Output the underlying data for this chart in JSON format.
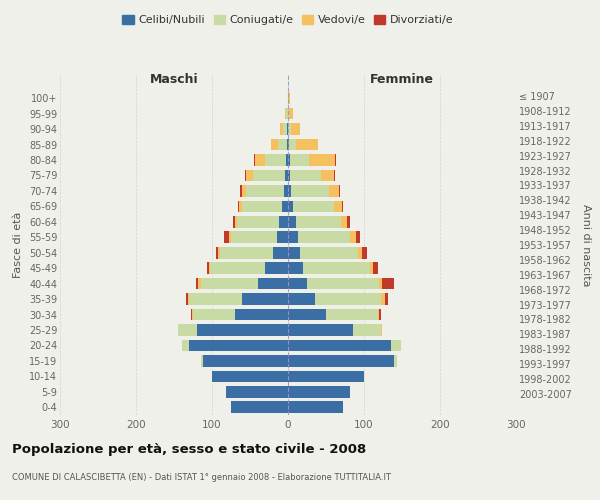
{
  "age_groups": [
    "0-4",
    "5-9",
    "10-14",
    "15-19",
    "20-24",
    "25-29",
    "30-34",
    "35-39",
    "40-44",
    "45-49",
    "50-54",
    "55-59",
    "60-64",
    "65-69",
    "70-74",
    "75-79",
    "80-84",
    "85-89",
    "90-94",
    "95-99",
    "100+"
  ],
  "birth_years": [
    "2003-2007",
    "1998-2002",
    "1993-1997",
    "1988-1992",
    "1983-1987",
    "1978-1982",
    "1973-1977",
    "1968-1972",
    "1963-1967",
    "1958-1962",
    "1953-1957",
    "1948-1952",
    "1943-1947",
    "1938-1942",
    "1933-1937",
    "1928-1932",
    "1923-1927",
    "1918-1922",
    "1913-1917",
    "1908-1912",
    "≤ 1907"
  ],
  "maschi": {
    "celibi": [
      75,
      82,
      100,
      112,
      130,
      120,
      70,
      60,
      40,
      30,
      20,
      15,
      12,
      8,
      5,
      4,
      2,
      1,
      1,
      0,
      0
    ],
    "coniugati": [
      0,
      0,
      0,
      2,
      10,
      25,
      55,
      70,
      75,
      72,
      70,
      60,
      55,
      52,
      50,
      42,
      28,
      12,
      5,
      2,
      0
    ],
    "vedovi": [
      0,
      0,
      0,
      0,
      0,
      0,
      1,
      2,
      3,
      2,
      2,
      3,
      3,
      4,
      6,
      9,
      14,
      10,
      4,
      2,
      0
    ],
    "divorziati": [
      0,
      0,
      0,
      0,
      0,
      0,
      1,
      2,
      3,
      3,
      3,
      6,
      2,
      2,
      2,
      1,
      1,
      0,
      0,
      0,
      0
    ]
  },
  "femmine": {
    "nubili": [
      72,
      82,
      100,
      140,
      135,
      85,
      50,
      35,
      25,
      20,
      16,
      13,
      10,
      7,
      4,
      3,
      2,
      1,
      0,
      0,
      0
    ],
    "coniugate": [
      0,
      0,
      0,
      3,
      14,
      38,
      68,
      88,
      95,
      88,
      76,
      68,
      60,
      54,
      50,
      40,
      25,
      10,
      4,
      1,
      0
    ],
    "vedove": [
      0,
      0,
      0,
      0,
      0,
      1,
      2,
      4,
      4,
      4,
      6,
      8,
      8,
      10,
      13,
      18,
      35,
      28,
      12,
      5,
      2
    ],
    "divorziate": [
      0,
      0,
      0,
      0,
      0,
      0,
      2,
      5,
      16,
      6,
      6,
      6,
      3,
      2,
      2,
      1,
      1,
      0,
      0,
      0,
      0
    ]
  },
  "colors": {
    "celibi_nubili": "#3a6ea5",
    "coniugati": "#c8dba4",
    "vedovi": "#f5c060",
    "divorziati": "#c0392b"
  },
  "xlim": 300,
  "title": "Popolazione per età, sesso e stato civile - 2008",
  "subtitle": "COMUNE DI CALASCIBETTA (EN) - Dati ISTAT 1° gennaio 2008 - Elaborazione TUTTITALIA.IT",
  "ylabel_left": "Fasce di età",
  "ylabel_right": "Anni di nascita",
  "xlabel_left": "Maschi",
  "xlabel_right": "Femmine",
  "legend_labels": [
    "Celibi/Nubili",
    "Coniugati/e",
    "Vedovi/e",
    "Divorziati/e"
  ],
  "background_color": "#f0f0eb",
  "bar_height": 0.75
}
